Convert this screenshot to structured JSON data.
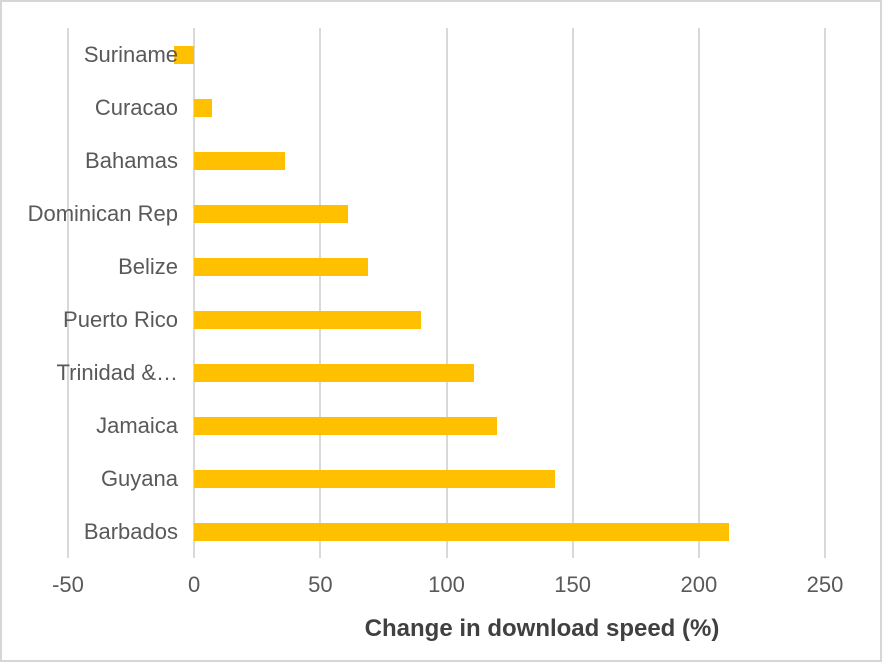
{
  "chart_data": {
    "type": "bar",
    "orientation": "horizontal",
    "title": "",
    "xlabel": "Change in download speed (%)",
    "categories": [
      "Suriname",
      "Curacao",
      "Bahamas",
      "Dominican Rep",
      "Belize",
      "Puerto Rico",
      "Trinidad &…",
      "Jamaica",
      "Guyana",
      "Barbados"
    ],
    "values": [
      -8,
      7,
      36,
      61,
      69,
      90,
      111,
      120,
      143,
      212
    ],
    "x_tick_labels": [
      "-50",
      "0",
      "50",
      "100",
      "150",
      "200",
      "250"
    ],
    "x_tick_values": [
      -50,
      0,
      50,
      100,
      150,
      200,
      250
    ],
    "xlim": [
      -50,
      250
    ],
    "grid": "vertical-gridlines",
    "legend": "none",
    "colors": {
      "bar": "#FFC000",
      "gridline": "#D9D9D9",
      "tick_text": "#595959",
      "category_text": "#595959",
      "axis_title_text": "#404040",
      "frame_border": "#D6D6D6",
      "background": "#FFFFFF"
    }
  }
}
